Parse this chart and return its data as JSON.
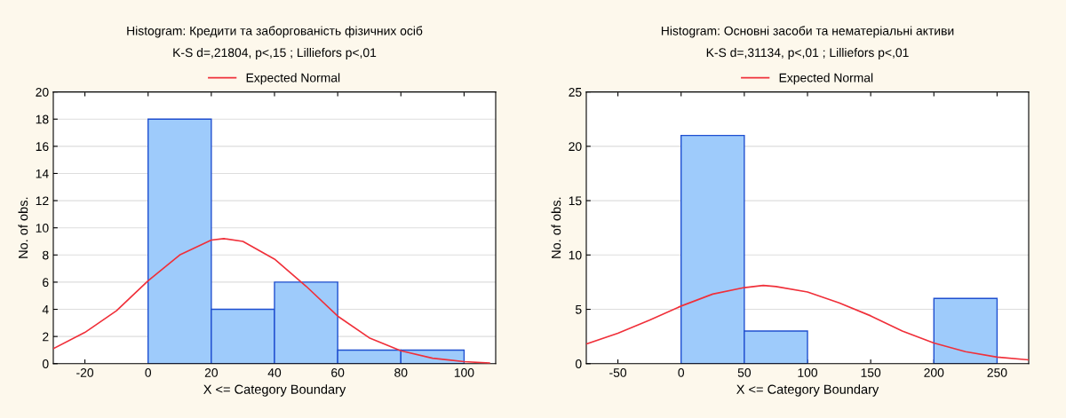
{
  "chart_data": [
    {
      "type": "histogram",
      "title": "Histogram: Кредити та заборгованість фізичних осіб",
      "subtitle": "K-S d=,21804, p<,15 ; Lilliefors p<,01",
      "xlabel": "X <= Category Boundary",
      "ylabel": "No. of obs.",
      "bins": [
        0,
        20,
        40,
        60,
        80,
        100
      ],
      "values": [
        18,
        4,
        6,
        1,
        1
      ],
      "color": "#9ecbfb",
      "series": [
        {
          "name": "Expected Normal",
          "type": "line",
          "color": "#f0303a",
          "x": [
            -30,
            -20,
            -10,
            0,
            10,
            20,
            24,
            30,
            40,
            50,
            60,
            70,
            80,
            90,
            100,
            108
          ],
          "values": [
            1.1,
            2.3,
            3.9,
            6.1,
            8.0,
            9.1,
            9.2,
            9.0,
            7.7,
            5.7,
            3.5,
            1.9,
            0.95,
            0.4,
            0.15,
            0.05
          ]
        }
      ],
      "xlim": [
        -30,
        110
      ],
      "xticks": [
        -20,
        0,
        20,
        40,
        60,
        80,
        100
      ],
      "ylim": [
        0,
        20
      ],
      "yticks": [
        0,
        2,
        4,
        6,
        8,
        10,
        12,
        14,
        16,
        18,
        20
      ],
      "grid": "y",
      "legend": "top"
    },
    {
      "type": "histogram",
      "title": "Histogram: Основні засоби та нематеріальні активи",
      "subtitle": "K-S d=,31134, p<,01 ; Lilliefors p<,01",
      "xlabel": "X <= Category Boundary",
      "ylabel": "No. of obs.",
      "bins": [
        0,
        50,
        100,
        150,
        200,
        250
      ],
      "values": [
        21,
        3,
        0,
        0,
        6
      ],
      "color": "#9ecbfb",
      "series": [
        {
          "name": "Expected Normal",
          "type": "line",
          "color": "#f0303a",
          "x": [
            -75,
            -50,
            -25,
            0,
            25,
            50,
            65,
            75,
            100,
            125,
            150,
            175,
            200,
            225,
            250,
            275
          ],
          "values": [
            1.8,
            2.8,
            4.0,
            5.3,
            6.4,
            7.0,
            7.2,
            7.1,
            6.6,
            5.6,
            4.4,
            3.0,
            1.9,
            1.1,
            0.6,
            0.35
          ]
        }
      ],
      "xlim": [
        -75,
        275
      ],
      "xticks": [
        -50,
        0,
        50,
        100,
        150,
        200,
        250
      ],
      "ylim": [
        0,
        25
      ],
      "yticks": [
        0,
        5,
        10,
        15,
        20,
        25
      ],
      "grid": "y",
      "legend": "top"
    }
  ]
}
